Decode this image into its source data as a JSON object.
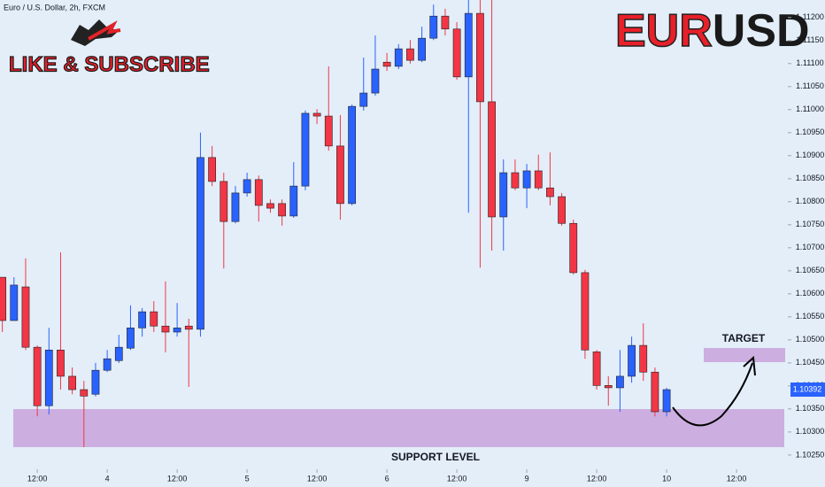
{
  "header": "Euro / U.S. Dollar, 2h, FXCM",
  "logo_text": "LIKE & SUBSCRIBE",
  "title_parts": [
    "EUR",
    "USD"
  ],
  "chart_data": {
    "type": "candlestick",
    "up_color": "#2962ff",
    "down_color": "#f23645",
    "xlim": [
      -0.2,
      67.4
    ],
    "ylim": [
      1.10219,
      1.11238
    ],
    "xticks": [
      {
        "value": 3,
        "label": "12:00"
      },
      {
        "value": 9,
        "label": "4"
      },
      {
        "value": 15,
        "label": "12:00"
      },
      {
        "value": 21,
        "label": "5"
      },
      {
        "value": 27,
        "label": "12:00"
      },
      {
        "value": 33,
        "label": "6"
      },
      {
        "value": 39,
        "label": "12:00"
      },
      {
        "value": 45,
        "label": "9"
      },
      {
        "value": 51,
        "label": "12:00"
      },
      {
        "value": 57,
        "label": "10"
      },
      {
        "value": 63,
        "label": "12:00"
      }
    ],
    "yticks": [
      {
        "value": 1.1025,
        "label": "1.10250"
      },
      {
        "value": 1.103,
        "label": "1.10300"
      },
      {
        "value": 1.1035,
        "label": "1.10350"
      },
      {
        "value": 1.104,
        "label": "1.10400"
      },
      {
        "value": 1.1045,
        "label": "1.10450"
      },
      {
        "value": 1.105,
        "label": "1.10500"
      },
      {
        "value": 1.1055,
        "label": "1.10550"
      },
      {
        "value": 1.106,
        "label": "1.10600"
      },
      {
        "value": 1.1065,
        "label": "1.10650"
      },
      {
        "value": 1.107,
        "label": "1.10700"
      },
      {
        "value": 1.1075,
        "label": "1.10750"
      },
      {
        "value": 1.108,
        "label": "1.10800"
      },
      {
        "value": 1.1085,
        "label": "1.10850"
      },
      {
        "value": 1.109,
        "label": "1.10900"
      },
      {
        "value": 1.1095,
        "label": "1.10950"
      },
      {
        "value": 1.11,
        "label": "1.11000"
      },
      {
        "value": 1.1105,
        "label": "1.11050"
      },
      {
        "value": 1.111,
        "label": "1.11100"
      },
      {
        "value": 1.1115,
        "label": "1.11150"
      },
      {
        "value": 1.112,
        "label": "1.11200"
      }
    ],
    "last_price": 1.10392,
    "annotations": [
      "TARGET",
      "SUPPORT LEVEL"
    ],
    "open": [
      1.10636,
      1.10542,
      1.10615,
      1.10484,
      1.10357,
      1.10478,
      1.10421,
      1.10392,
      1.10382,
      1.10434,
      1.10455,
      1.10482,
      1.10526,
      1.10561,
      1.1053,
      1.10517,
      1.1053,
      1.10523,
      1.10896,
      1.10844,
      1.10757,
      1.10819,
      1.10848,
      1.10796,
      1.10796,
      1.10769,
      1.10834,
      1.10992,
      1.10986,
      1.10921,
      1.10796,
      1.11007,
      1.11036,
      1.11103,
      1.11094,
      1.11132,
      1.11107,
      1.11155,
      1.11203,
      1.11175,
      1.11071,
      1.11209,
      1.11017,
      1.10767,
      1.10863,
      1.1083,
      1.10867,
      1.1083,
      1.10811,
      1.10753,
      1.10646,
      1.10474,
      1.10401,
      1.10396,
      1.10421,
      1.10488,
      1.1043,
      1.10344
    ],
    "high": [
      1.10636,
      1.10636,
      1.10677,
      1.10488,
      1.10526,
      1.1069,
      1.1044,
      1.10411,
      1.1045,
      1.10478,
      1.10511,
      1.10575,
      1.10569,
      1.10584,
      1.10627,
      1.1058,
      1.10546,
      1.1095,
      1.10921,
      1.10863,
      1.10834,
      1.10863,
      1.10857,
      1.10805,
      1.10805,
      1.10886,
      1.10998,
      1.11001,
      1.11094,
      1.10988,
      1.11011,
      1.11113,
      1.11161,
      1.11123,
      1.11142,
      1.11151,
      1.1118,
      1.11228,
      1.11219,
      1.1119,
      1.11238,
      1.11238,
      1.11238,
      1.10892,
      1.10892,
      1.10882,
      1.10902,
      1.10907,
      1.10819,
      1.10761,
      1.10652,
      1.10478,
      1.10421,
      1.10478,
      1.10507,
      1.10536,
      1.1044,
      1.10396
    ],
    "low": [
      1.10517,
      1.10542,
      1.10478,
      1.10334,
      1.10338,
      1.10392,
      1.10382,
      1.10267,
      1.10377,
      1.1043,
      1.1045,
      1.10478,
      1.10507,
      1.10517,
      1.10473,
      1.10507,
      1.10398,
      1.10507,
      1.10834,
      1.10655,
      1.10753,
      1.10811,
      1.10757,
      1.10776,
      1.10748,
      1.10765,
      1.10825,
      1.10969,
      1.10911,
      1.10761,
      1.10792,
      1.10998,
      1.1103,
      1.11084,
      1.11088,
      1.111,
      1.11103,
      1.11151,
      1.11161,
      1.11065,
      1.10776,
      1.10657,
      1.10694,
      1.10694,
      1.10825,
      1.10786,
      1.10825,
      1.10792,
      1.10748,
      1.10642,
      1.10459,
      1.10392,
      1.10357,
      1.10344,
      1.10407,
      1.10411,
      1.10334,
      1.10334
    ],
    "close": [
      1.10542,
      1.10619,
      1.10484,
      1.10357,
      1.10478,
      1.10421,
      1.10392,
      1.10378,
      1.10434,
      1.10459,
      1.10484,
      1.10526,
      1.10561,
      1.1053,
      1.10517,
      1.10526,
      1.10523,
      1.10896,
      1.10844,
      1.10757,
      1.10819,
      1.10848,
      1.10792,
      1.10786,
      1.10769,
      1.10834,
      1.10992,
      1.10986,
      1.10921,
      1.10796,
      1.11007,
      1.11036,
      1.11088,
      1.11094,
      1.11132,
      1.11107,
      1.11155,
      1.11203,
      1.11175,
      1.11071,
      1.11209,
      1.11017,
      1.10767,
      1.10863,
      1.1083,
      1.10867,
      1.1083,
      1.10811,
      1.10753,
      1.10646,
      1.10478,
      1.10401,
      1.10396,
      1.10421,
      1.10488,
      1.1043,
      1.10344,
      1.10392
    ]
  }
}
